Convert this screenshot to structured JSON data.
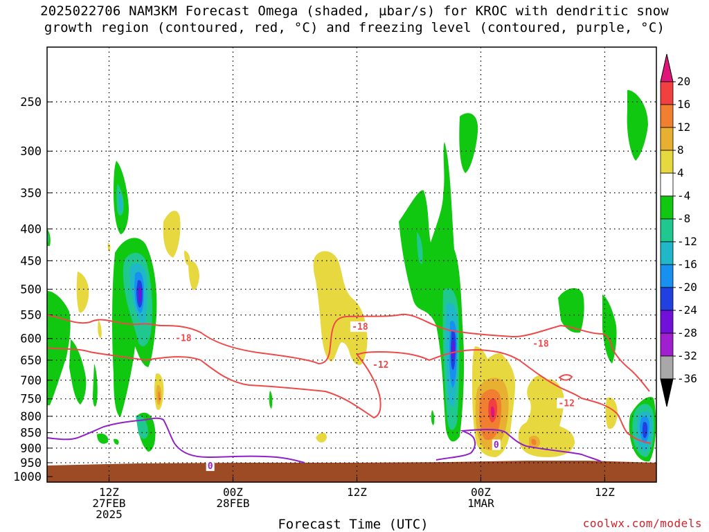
{
  "title": {
    "line1": "2025022706 NAM3KM Forecast Omega (shaded, µbar/s) for KROC with dendritic snow",
    "line2": "growth region (contoured, red, °C) and freezing level (contoured, purple, °C)"
  },
  "x_axis": {
    "label": "Forecast Time (UTC)",
    "ticks": [
      {
        "hour": 6,
        "top": "12Z",
        "mid": "27FEB",
        "bottom": "2025"
      },
      {
        "hour": 18,
        "top": "00Z",
        "mid": "28FEB",
        "bottom": ""
      },
      {
        "hour": 30,
        "top": "12Z",
        "mid": "",
        "bottom": ""
      },
      {
        "hour": 42,
        "top": "00Z",
        "mid": "1MAR",
        "bottom": ""
      },
      {
        "hour": 54,
        "top": "12Z",
        "mid": "",
        "bottom": ""
      }
    ]
  },
  "y_axis": {
    "label": "",
    "ticks": [
      250,
      300,
      350,
      400,
      450,
      500,
      550,
      600,
      650,
      700,
      750,
      800,
      850,
      900,
      950,
      1000
    ],
    "range": [
      1000,
      200
    ],
    "scale": "log-pressure"
  },
  "credit": "coolwx.com/models",
  "chart_data": {
    "type": "heatmap",
    "title": "2025022706 NAM3KM Forecast Omega (shaded, µbar/s) for KROC with dendritic snow growth region (contoured, red, °C) and freezing level (contoured, purple, °C)",
    "xlabel": "Forecast Time (UTC)",
    "ylabel": "",
    "x_range_hours": [
      0,
      59
    ],
    "y_range_hPa": [
      1000,
      200
    ],
    "grid": "dotted horizontal lines at pressure ticks; vertical lines at 12Z/00Z ticks",
    "colorbar": {
      "levels": [
        -36,
        -32,
        -28,
        -24,
        -20,
        -16,
        -12,
        -8,
        -4,
        4,
        8,
        12,
        16,
        20
      ],
      "labels": [
        "20",
        "16",
        "12",
        "8",
        "4",
        "-4",
        "-8",
        "-12",
        "-16",
        "-20",
        "-24",
        "-28",
        "-32",
        "-36"
      ],
      "colors": [
        {
          "range": "> 20",
          "color": "#e0157a"
        },
        {
          "range": "16 to 20",
          "color": "#f04040"
        },
        {
          "range": "12 to 16",
          "color": "#f08030"
        },
        {
          "range": "8 to 12",
          "color": "#e8b030"
        },
        {
          "range": "4 to 8",
          "color": "#e8d840"
        },
        {
          "range": "-4 to 4",
          "color": "#ffffff"
        },
        {
          "range": "-8 to -4",
          "color": "#10c810"
        },
        {
          "range": "-12 to -8",
          "color": "#20c890"
        },
        {
          "range": "-16 to -12",
          "color": "#20b8c8"
        },
        {
          "range": "-20 to -16",
          "color": "#1890f0"
        },
        {
          "range": "-24 to -20",
          "color": "#2040e0"
        },
        {
          "range": "-28 to -24",
          "color": "#7010d8"
        },
        {
          "range": "-32 to -28",
          "color": "#a020d0"
        },
        {
          "range": "-36 to -32",
          "color": "#a8a8a8"
        },
        {
          "range": "< -36",
          "color": "#000000"
        }
      ]
    },
    "ground_color": "#9c4b24",
    "contours": {
      "dgz_color": "#f04848",
      "freezing_color": "#9020c8",
      "dgz_labels": [
        {
          "text": "-18",
          "hour": 13.2,
          "p": 600
        },
        {
          "text": "-18",
          "hour": 30.3,
          "p": 575
        },
        {
          "text": "-12",
          "hour": 32.3,
          "p": 662
        },
        {
          "text": "-18",
          "hour": 47.8,
          "p": 612
        },
        {
          "text": "-12",
          "hour": 50.3,
          "p": 763
        }
      ],
      "freezing_labels": [
        {
          "text": "0",
          "hour": 15.8,
          "p": 962
        },
        {
          "text": "0",
          "hour": 43.5,
          "p": 890
        }
      ]
    }
  }
}
